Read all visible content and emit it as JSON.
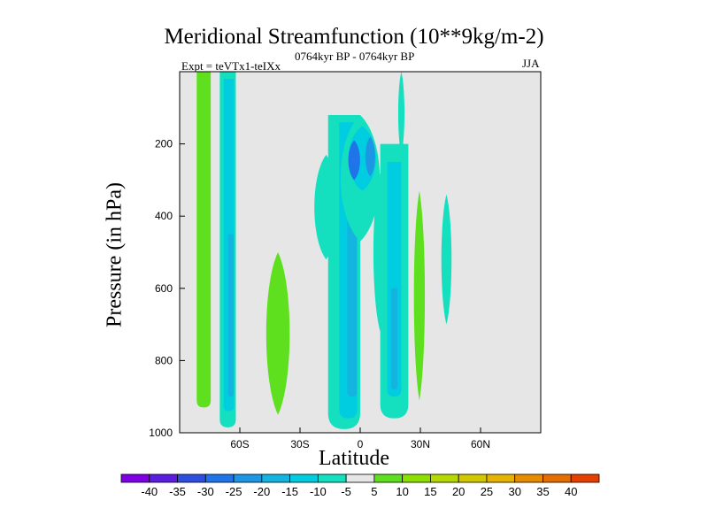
{
  "chart_data": {
    "type": "heatmap",
    "title": "Meridional Streamfunction (10**9kg/m-2)",
    "left_label": "Expt = teVTx1-teIXx",
    "center_label": "0764kyr BP - 0764kyr BP",
    "right_label": "JJA",
    "xlabel": "Latitude",
    "ylabel": "Pressure (in hPa)",
    "xlim": [
      -90,
      90
    ],
    "ylim": [
      1000,
      0
    ],
    "x_ticks": [
      {
        "value": -60,
        "label": "60S"
      },
      {
        "value": -30,
        "label": "30S"
      },
      {
        "value": 0,
        "label": "0"
      },
      {
        "value": 30,
        "label": "30N"
      },
      {
        "value": 60,
        "label": "60N"
      }
    ],
    "y_ticks": [
      {
        "value": 200,
        "label": "200"
      },
      {
        "value": 400,
        "label": "400"
      },
      {
        "value": 600,
        "label": "600"
      },
      {
        "value": 800,
        "label": "800"
      },
      {
        "value": 1000,
        "label": "1000"
      }
    ],
    "missing_color": "#e6e6e6",
    "contour_levels": [
      -40,
      -35,
      -30,
      -25,
      -20,
      -15,
      -10,
      -5,
      5,
      10,
      15,
      20,
      25,
      30,
      35,
      40
    ],
    "colors": [
      "#8000e6",
      "#5a1ee0",
      "#2d4fe0",
      "#1e74e8",
      "#1e96e6",
      "#14b4e0",
      "#00cde0",
      "#14e0c0",
      "#e6e6e6",
      "#5ee01e",
      "#8ce000",
      "#b4d800",
      "#d2c800",
      "#e6b400",
      "#e68c00",
      "#e66e00",
      "#e64000"
    ],
    "colorbar_labels": [
      "-40",
      "-35",
      "-30",
      "-25",
      "-20",
      "-15",
      "-10",
      "-5",
      "5",
      "10",
      "15",
      "20",
      "25",
      "30",
      "35",
      "40"
    ],
    "features": [
      {
        "lat": -78,
        "dlat": 3.5,
        "p_top": 0,
        "p_bot": 930,
        "value": 7,
        "shape": "column"
      },
      {
        "lat": -66,
        "dlat": 4,
        "p_top": 0,
        "p_bot": 985,
        "value": -8,
        "shape": "column"
      },
      {
        "lat": -65.5,
        "dlat": 2.6,
        "p_top": 20,
        "p_bot": 940,
        "value": -12,
        "shape": "column"
      },
      {
        "lat": -64.5,
        "dlat": 1.4,
        "p_top": 450,
        "p_bot": 900,
        "value": -18,
        "shape": "column"
      },
      {
        "lat": -41,
        "dlat": 6,
        "p_top": 500,
        "p_bot": 950,
        "value": 7,
        "shape": "lens"
      },
      {
        "lat": -17,
        "dlat": 6,
        "p_top": 230,
        "p_bot": 520,
        "value": -7,
        "shape": "lens"
      },
      {
        "lat": -8,
        "dlat": 8,
        "p_top": 120,
        "p_bot": 990,
        "value": -8,
        "shape": "column"
      },
      {
        "lat": -6,
        "dlat": 4.5,
        "p_top": 140,
        "p_bot": 960,
        "value": -12,
        "shape": "column"
      },
      {
        "lat": -4,
        "dlat": 2.4,
        "p_top": 300,
        "p_bot": 900,
        "value": -17,
        "shape": "column"
      },
      {
        "lat": 0,
        "dlat": 10,
        "p_top": 120,
        "p_bot": 470,
        "value": -8,
        "shape": "lens"
      },
      {
        "lat": 1,
        "dlat": 7,
        "p_top": 150,
        "p_bot": 330,
        "value": -15,
        "shape": "lens"
      },
      {
        "lat": -3,
        "dlat": 3,
        "p_top": 190,
        "p_bot": 300,
        "value": -28,
        "shape": "lens"
      },
      {
        "lat": 5,
        "dlat": 2.5,
        "p_top": 180,
        "p_bot": 290,
        "value": -22,
        "shape": "lens"
      },
      {
        "lat": 10,
        "dlat": 3.5,
        "p_top": 280,
        "p_bot": 720,
        "value": -10,
        "shape": "lens"
      },
      {
        "lat": 17,
        "dlat": 7,
        "p_top": 200,
        "p_bot": 960,
        "value": -8,
        "shape": "column"
      },
      {
        "lat": 17,
        "dlat": 3.5,
        "p_top": 250,
        "p_bot": 900,
        "value": -12,
        "shape": "column"
      },
      {
        "lat": 17,
        "dlat": 1.6,
        "p_top": 600,
        "p_bot": 880,
        "value": -18,
        "shape": "column"
      },
      {
        "lat": 20.5,
        "dlat": 1.6,
        "p_top": 0,
        "p_bot": 230,
        "value": -7,
        "shape": "lens"
      },
      {
        "lat": 29.5,
        "dlat": 2.8,
        "p_top": 330,
        "p_bot": 910,
        "value": 7,
        "shape": "lens"
      },
      {
        "lat": 43,
        "dlat": 2.6,
        "p_top": 340,
        "p_bot": 700,
        "value": -8,
        "shape": "lens"
      }
    ]
  }
}
